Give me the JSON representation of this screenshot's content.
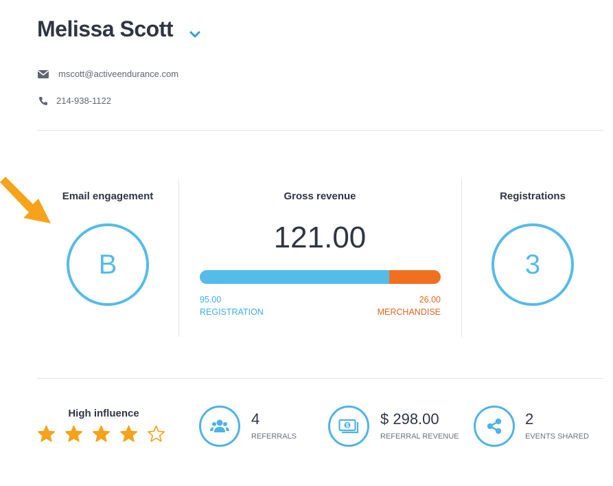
{
  "profile": {
    "name": "Melissa Scott",
    "email": "mscott@activeendurance.com",
    "phone": "214-938-1122"
  },
  "metrics": {
    "email_engagement": {
      "label": "Email engagement",
      "grade": "B"
    },
    "gross_revenue": {
      "label": "Gross revenue",
      "total": "121.00",
      "registration_value": "95.00",
      "registration_label": "REGISTRATION",
      "merchandise_value": "26.00",
      "merchandise_label": "MERCHANDISE",
      "registration_fraction": 0.785
    },
    "registrations": {
      "label": "Registrations",
      "value": "3"
    }
  },
  "influence": {
    "label": "High influence",
    "rating": 4,
    "max_rating": 5
  },
  "stats": [
    {
      "value": "4",
      "label": "REFERRALS",
      "icon": "users-icon"
    },
    {
      "value": "$ 298.00",
      "label": "REFERRAL REVENUE",
      "icon": "money-icon"
    },
    {
      "value": "2",
      "label": "EVENTS SHARED",
      "icon": "share-icon"
    }
  ],
  "colors": {
    "accent": "#55bbe9",
    "merchandise": "#f07020",
    "star": "#f7a21b",
    "arrow": "#f7a21b"
  }
}
